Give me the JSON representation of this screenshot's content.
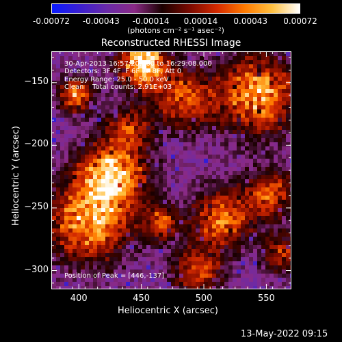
{
  "colorbar": {
    "tick_labels": [
      "-0.00072",
      "-0.00043",
      "-0.00014",
      "0.00014",
      "0.00043",
      "0.00072"
    ],
    "units_label": "(photons cm⁻² s⁻¹ asec⁻²)",
    "colors": [
      "#0a1bff",
      "#3a1fd0",
      "#6a2aa8",
      "#8a2a86",
      "#1a0000",
      "#7a0a00",
      "#d42a00",
      "#ff7a00",
      "#ffc040",
      "#ffffff"
    ]
  },
  "plot": {
    "title": "Reconstructed RHESSI Image",
    "xlabel": "Heliocentric X (arcsec)",
    "ylabel": "Heliocentric Y (arcsec)",
    "overlay_lines": [
      "30-Apr-2013 16:57:20.000 to 16:29:08.000",
      "Detectors: 3F 4F  F 6F 7F 8F, Att 0",
      "Energy Range: 25.0 - 50.0 keV",
      "Clean    Total counts: 2.91E+03"
    ],
    "peak_label": "Position of Peak = [446,-137]"
  },
  "chart_data": {
    "type": "heatmap",
    "title": "Reconstructed RHESSI Image",
    "xlabel": "Heliocentric X (arcsec)",
    "ylabel": "Heliocentric Y (arcsec)",
    "xlim": [
      378,
      570
    ],
    "ylim": [
      -315,
      -125
    ],
    "xticks": [
      400,
      450,
      500,
      550
    ],
    "yticks": [
      -150,
      -200,
      -250,
      -300
    ],
    "colorbar_range": [
      -0.00072,
      0.00072
    ],
    "grid": false,
    "peak": {
      "x": 446,
      "y": -137
    }
  },
  "footer": {
    "timestamp": "13-May-2022 09:15"
  }
}
